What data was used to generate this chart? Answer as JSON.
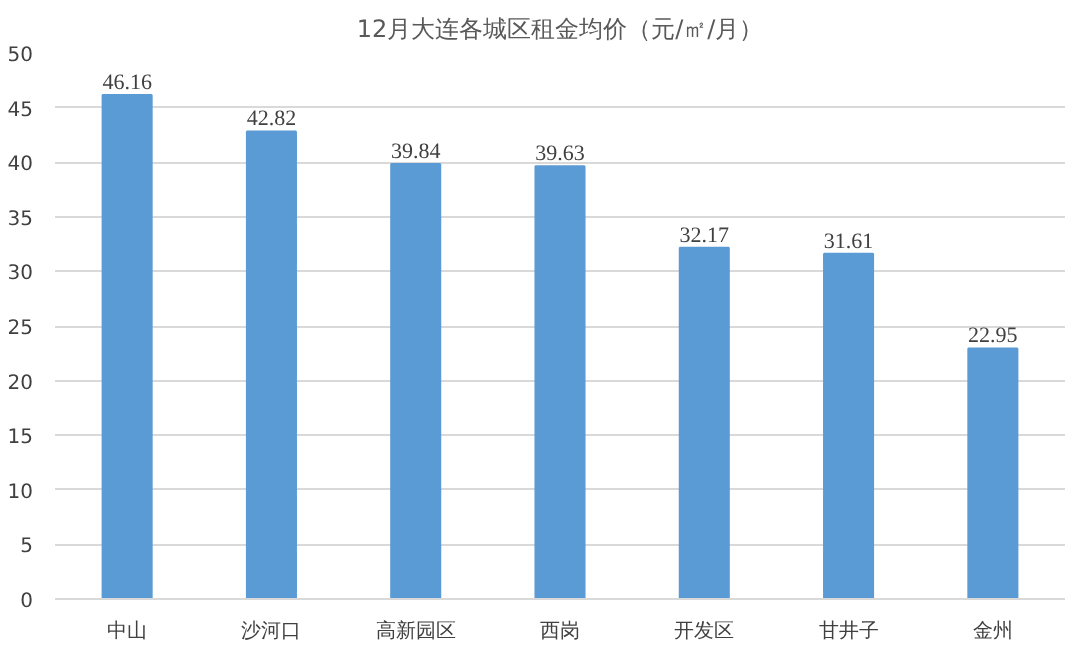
{
  "chart_data": {
    "type": "bar",
    "title": "12月大连各城区租金均价（元/㎡/月）",
    "categories": [
      "中山",
      "沙河口",
      "高新园区",
      "西岗",
      "开发区",
      "甘井子",
      "金州"
    ],
    "values": [
      46.16,
      42.82,
      39.84,
      39.63,
      32.17,
      31.61,
      22.95
    ],
    "color": "#5b9bd5",
    "ylim": [
      0,
      50
    ],
    "yticks": [
      0,
      5,
      10,
      15,
      20,
      25,
      30,
      35,
      40,
      45,
      50
    ],
    "grid": "y",
    "data_labels": true
  }
}
